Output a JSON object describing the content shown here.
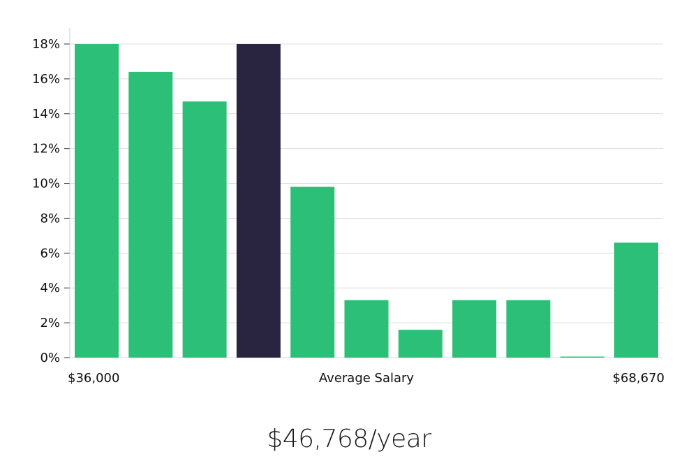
{
  "chart_data": {
    "type": "bar",
    "title": "",
    "xlabel": "Average Salary",
    "ylabel": "",
    "ylim": [
      0,
      19
    ],
    "yticks": [
      0,
      2,
      4,
      6,
      8,
      10,
      12,
      14,
      16,
      18
    ],
    "ytick_suffix": "%",
    "x_range_labels": {
      "min": "$36,000",
      "max": "$68,670"
    },
    "values": [
      18.0,
      16.4,
      14.7,
      18.0,
      9.8,
      3.3,
      1.6,
      3.3,
      3.3,
      0.05,
      6.6
    ],
    "highlight_index": 3,
    "colors": {
      "bar": "#2bbf77",
      "highlight": "#29243f",
      "grid": "#dcdcdc",
      "axis": "#cccccc"
    }
  },
  "salary_text": "$46,768/year"
}
